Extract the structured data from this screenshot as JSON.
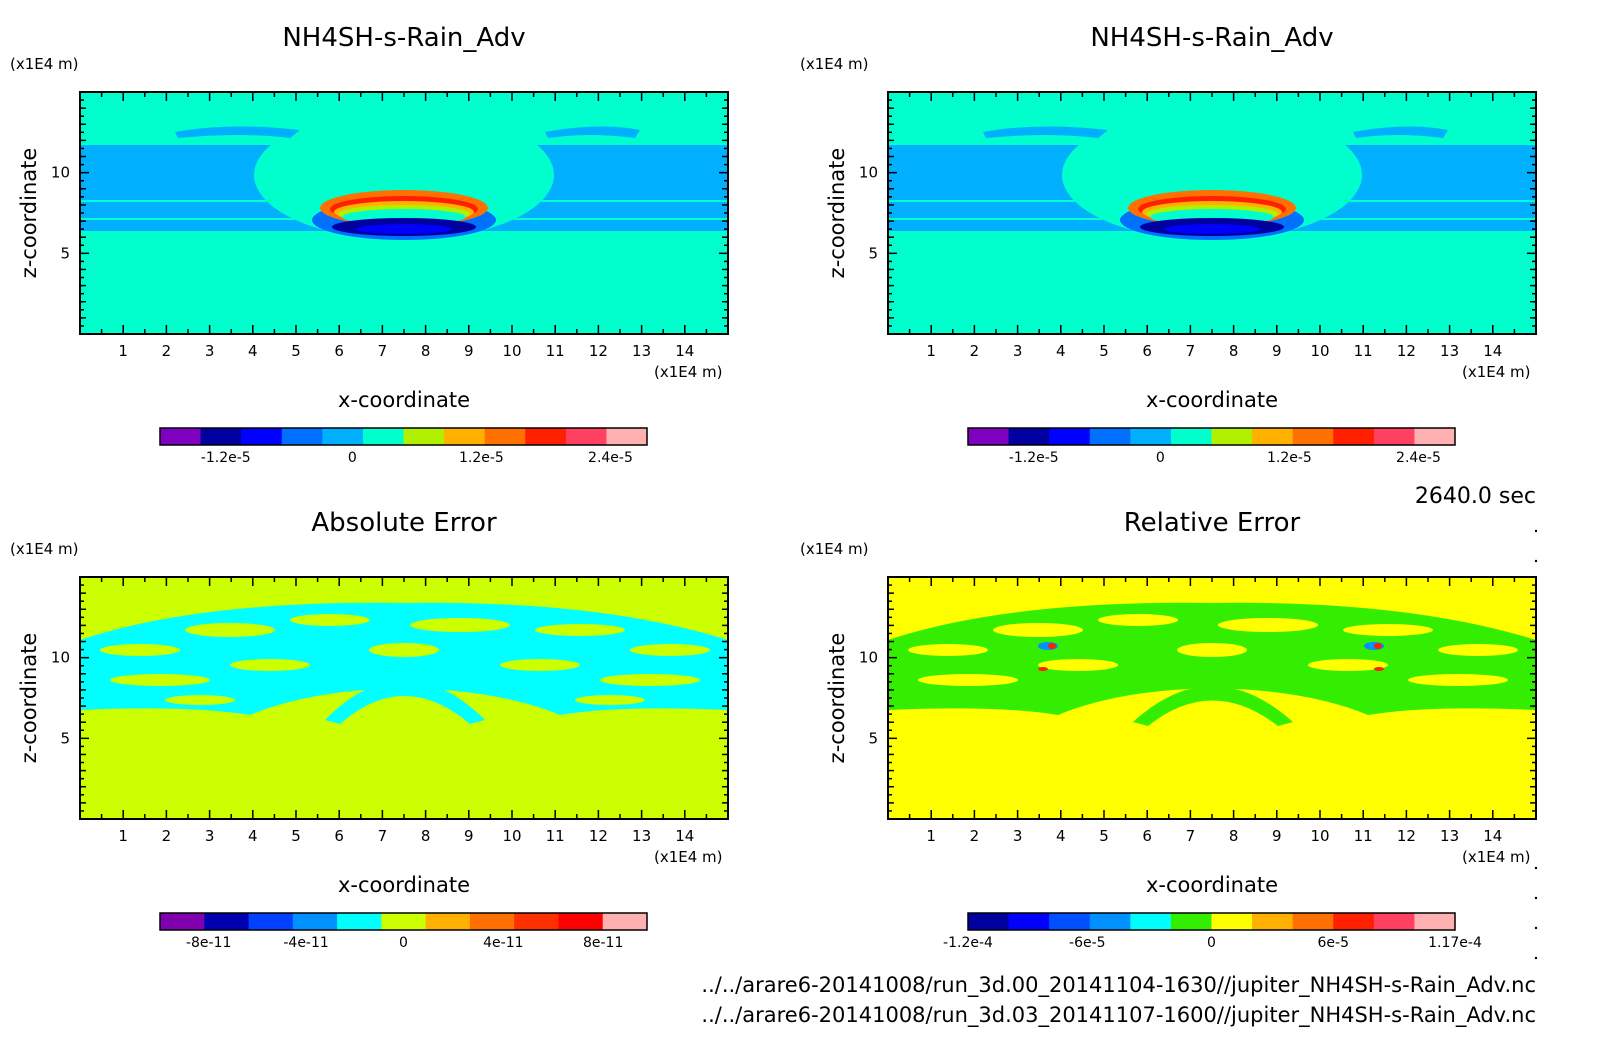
{
  "time_label": "2640.0 sec",
  "footer": [
    "../../arare6-20141008/run_3d.00_20141104-1630//jupiter_NH4SH-s-Rain_Adv.nc",
    "../../arare6-20141008/run_3d.03_20141107-1600//jupiter_NH4SH-s-Rain_Adv.nc"
  ],
  "chart_data": [
    {
      "type": "heatmap",
      "title": "NH4SH-s-Rain_Adv",
      "xlabel": "x-coordinate",
      "ylabel": "z-coordinate",
      "x_unit": "(x1E4 m)",
      "y_unit": "(x1E4 m)",
      "x_ticks": [
        "1",
        "2",
        "3",
        "4",
        "5",
        "6",
        "7",
        "8",
        "9",
        "10",
        "11",
        "12",
        "13",
        "14"
      ],
      "y_ticks": [
        "5",
        "10"
      ],
      "xlim": [
        0,
        15
      ],
      "ylim": [
        0,
        15
      ],
      "background": "#00ffcc",
      "colorbar": {
        "colors": [
          "#8000c0",
          "#0000a0",
          "#0000ff",
          "#0070ff",
          "#00b0ff",
          "#00ffcc",
          "#b0f000",
          "#ffb000",
          "#ff7000",
          "#ff2000",
          "#ff4060",
          "#ffb0b0"
        ],
        "tick_labels": [
          "-1.2e-5",
          "0",
          "1.2e-5",
          "2.4e-5"
        ]
      }
    },
    {
      "type": "heatmap",
      "title": "NH4SH-s-Rain_Adv",
      "xlabel": "x-coordinate",
      "ylabel": "z-coordinate",
      "x_unit": "(x1E4 m)",
      "y_unit": "(x1E4 m)",
      "x_ticks": [
        "1",
        "2",
        "3",
        "4",
        "5",
        "6",
        "7",
        "8",
        "9",
        "10",
        "11",
        "12",
        "13",
        "14"
      ],
      "y_ticks": [
        "5",
        "10"
      ],
      "xlim": [
        0,
        15
      ],
      "ylim": [
        0,
        15
      ],
      "background": "#00ffcc",
      "colorbar": {
        "colors": [
          "#8000c0",
          "#0000a0",
          "#0000ff",
          "#0070ff",
          "#00b0ff",
          "#00ffcc",
          "#b0f000",
          "#ffb000",
          "#ff7000",
          "#ff2000",
          "#ff4060",
          "#ffb0b0"
        ],
        "tick_labels": [
          "-1.2e-5",
          "0",
          "1.2e-5",
          "2.4e-5"
        ]
      }
    },
    {
      "type": "heatmap",
      "title": "Absolute Error",
      "xlabel": "x-coordinate",
      "ylabel": "z-coordinate",
      "x_unit": "(x1E4 m)",
      "y_unit": "(x1E4 m)",
      "x_ticks": [
        "1",
        "2",
        "3",
        "4",
        "5",
        "6",
        "7",
        "8",
        "9",
        "10",
        "11",
        "12",
        "13",
        "14"
      ],
      "y_ticks": [
        "5",
        "10"
      ],
      "xlim": [
        0,
        15
      ],
      "ylim": [
        0,
        15
      ],
      "background": "#ccff00",
      "colorbar": {
        "colors": [
          "#8000b0",
          "#0000b0",
          "#0040ff",
          "#0090ff",
          "#00ffff",
          "#ccff00",
          "#ffb000",
          "#ff7000",
          "#ff3000",
          "#ff0000",
          "#ffb0b0"
        ],
        "tick_labels": [
          "-8e-11",
          "-4e-11",
          "0",
          "4e-11",
          "8e-11"
        ]
      }
    },
    {
      "type": "heatmap",
      "title": "Relative Error",
      "xlabel": "x-coordinate",
      "ylabel": "z-coordinate",
      "x_unit": "(x1E4 m)",
      "y_unit": "(x1E4 m)",
      "x_ticks": [
        "1",
        "2",
        "3",
        "4",
        "5",
        "6",
        "7",
        "8",
        "9",
        "10",
        "11",
        "12",
        "13",
        "14"
      ],
      "y_ticks": [
        "5",
        "10"
      ],
      "xlim": [
        0,
        15
      ],
      "ylim": [
        0,
        15
      ],
      "background": "#ffff00",
      "colorbar": {
        "colors": [
          "#0000a0",
          "#0000ff",
          "#0050ff",
          "#0090ff",
          "#00ffff",
          "#33ee00",
          "#ffff00",
          "#ffb000",
          "#ff7000",
          "#ff2000",
          "#ff4060",
          "#ffb0b0"
        ],
        "tick_labels": [
          "-1.2e-4",
          "-6e-5",
          "0",
          "6e-5",
          "1.17e-4"
        ]
      }
    }
  ]
}
